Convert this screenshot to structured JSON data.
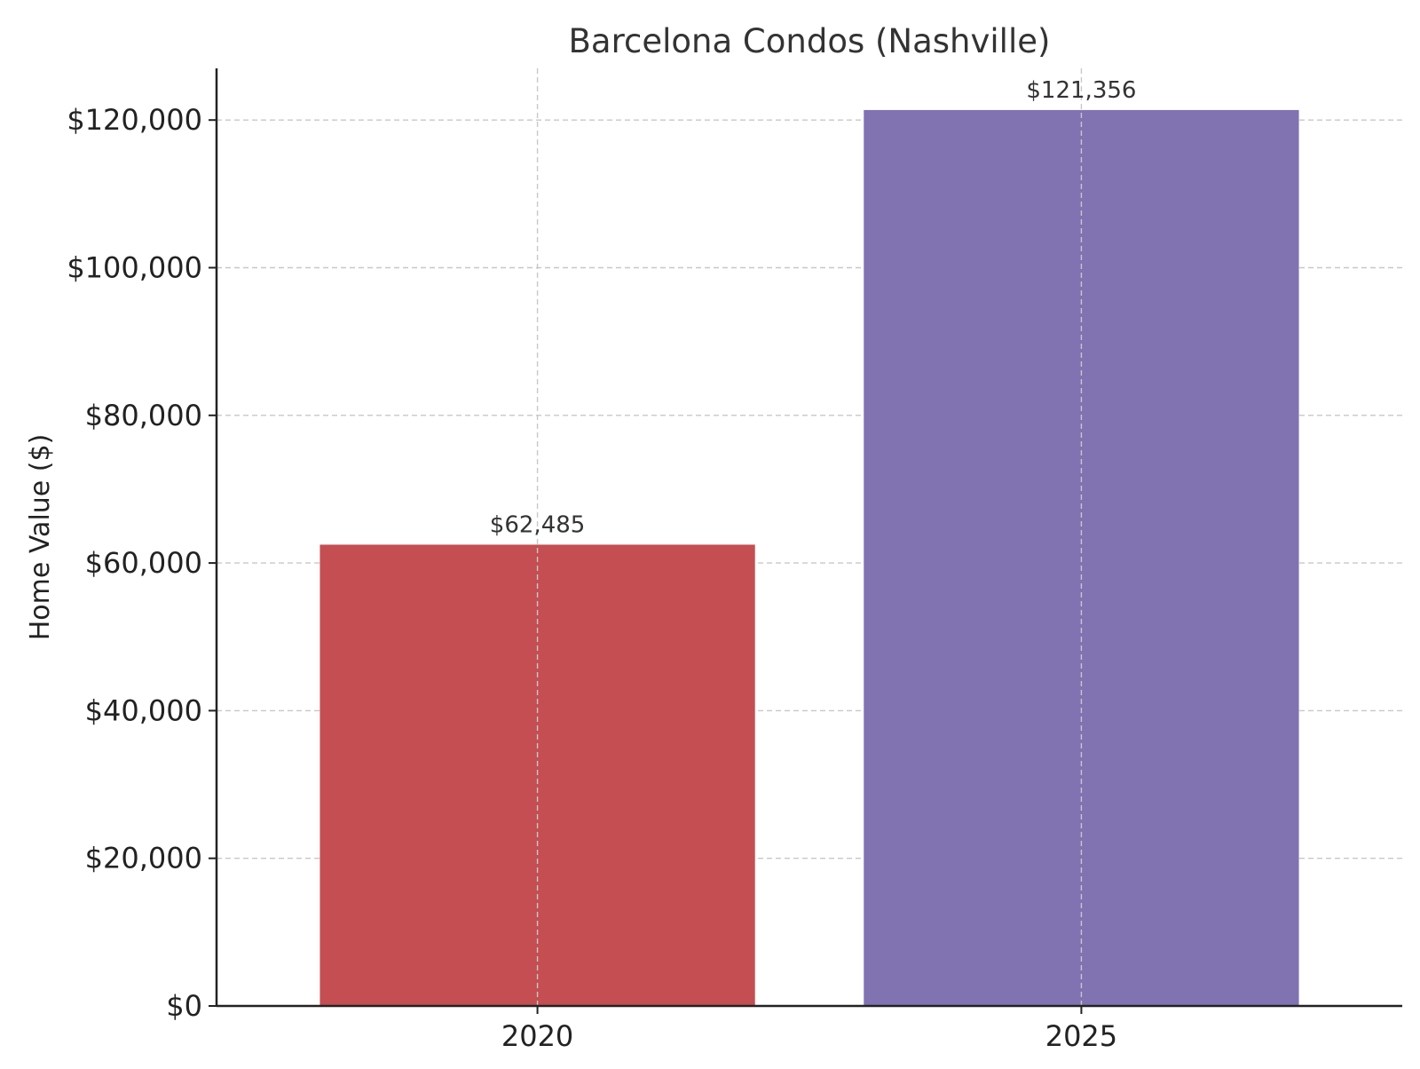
{
  "chart_data": {
    "type": "bar",
    "title": "Barcelona Condos (Nashville)",
    "xlabel": "",
    "ylabel": "Home Value ($)",
    "categories": [
      "2020",
      "2025"
    ],
    "values": [
      62485,
      121356
    ],
    "value_labels": [
      "$62,485",
      "$121,356"
    ],
    "colors": [
      "#c44e52",
      "#8172b2"
    ],
    "ylim": [
      0,
      127000
    ],
    "yticks": [
      0,
      20000,
      40000,
      60000,
      80000,
      100000,
      120000
    ],
    "ytick_labels": [
      "$0",
      "$20,000",
      "$40,000",
      "$60,000",
      "$80,000",
      "$100,000",
      "$120,000"
    ],
    "grid": true,
    "legend": "none"
  }
}
